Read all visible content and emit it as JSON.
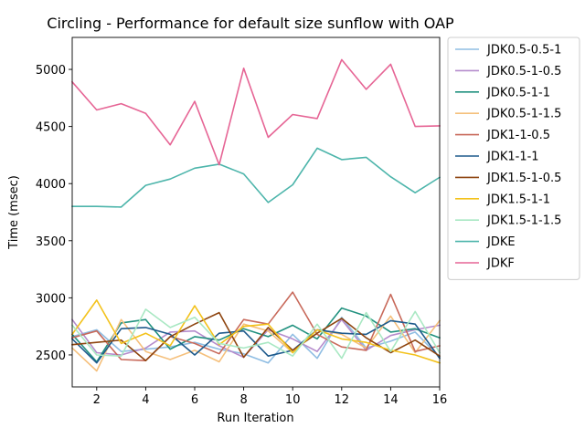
{
  "chart_data": {
    "type": "line",
    "title": "Circling - Performance for default size sunflow with OAP",
    "xlabel": "Run Iteration",
    "ylabel": "Time (msec)",
    "xlim": [
      1,
      16
    ],
    "ylim": [
      2220,
      5280
    ],
    "xticks": [
      2,
      4,
      6,
      8,
      10,
      12,
      14,
      16
    ],
    "yticks": [
      2500,
      3000,
      3500,
      4000,
      4500,
      5000
    ],
    "grid": false,
    "legend_position": "outside-right",
    "x": [
      1,
      2,
      3,
      4,
      5,
      6,
      7,
      8,
      9,
      10,
      11,
      12,
      13,
      14,
      15,
      16
    ],
    "series": [
      {
        "name": "JDK0.5-0.5-1",
        "color": "#8fbde3",
        "values": [
          2660,
          2720,
          2530,
          2550,
          2570,
          2610,
          2550,
          2510,
          2430,
          2680,
          2470,
          2830,
          2560,
          2620,
          2700,
          2480
        ]
      },
      {
        "name": "JDK0.5-1-0.5",
        "color": "#b58ccc",
        "values": [
          2810,
          2520,
          2500,
          2560,
          2700,
          2710,
          2580,
          2480,
          2720,
          2640,
          2530,
          2810,
          2540,
          2670,
          2720,
          2760
        ]
      },
      {
        "name": "JDK0.5-1-1",
        "color": "#21917f",
        "values": [
          2680,
          2440,
          2780,
          2810,
          2550,
          2660,
          2630,
          2730,
          2660,
          2760,
          2640,
          2910,
          2840,
          2700,
          2730,
          2650
        ]
      },
      {
        "name": "JDK0.5-1-1.5",
        "color": "#f5c07c",
        "values": [
          2560,
          2360,
          2810,
          2530,
          2460,
          2540,
          2440,
          2770,
          2710,
          2520,
          2720,
          2680,
          2560,
          2840,
          2520,
          2800
        ]
      },
      {
        "name": "JDK1-1-0.5",
        "color": "#c8695a",
        "values": [
          2650,
          2710,
          2460,
          2450,
          2660,
          2600,
          2510,
          2810,
          2770,
          3050,
          2680,
          2570,
          2540,
          3030,
          2530,
          2580
        ]
      },
      {
        "name": "JDK1-1-1",
        "color": "#1e5a8c",
        "values": [
          2640,
          2430,
          2730,
          2740,
          2680,
          2500,
          2690,
          2710,
          2490,
          2540,
          2720,
          2690,
          2680,
          2800,
          2770,
          2470
        ]
      },
      {
        "name": "JDK1.5-1-0.5",
        "color": "#8e4510",
        "values": [
          2590,
          2610,
          2630,
          2450,
          2660,
          2770,
          2870,
          2480,
          2740,
          2540,
          2690,
          2820,
          2650,
          2520,
          2630,
          2490
        ]
      },
      {
        "name": "JDK1.5-1-1",
        "color": "#f3c21c",
        "values": [
          2680,
          2980,
          2600,
          2690,
          2580,
          2930,
          2590,
          2750,
          2770,
          2520,
          2720,
          2640,
          2610,
          2540,
          2500,
          2430
        ]
      },
      {
        "name": "JDK1.5-1-1.5",
        "color": "#a9e8c3",
        "values": [
          2760,
          2500,
          2490,
          2900,
          2740,
          2830,
          2600,
          2560,
          2610,
          2490,
          2770,
          2470,
          2870,
          2530,
          2880,
          2520
        ]
      },
      {
        "name": "JDKE",
        "color": "#4db5ab",
        "values": [
          3800,
          3800,
          3795,
          3985,
          4040,
          4135,
          4170,
          4085,
          3835,
          3990,
          4310,
          4210,
          4230,
          4060,
          3920,
          4055
        ]
      },
      {
        "name": "JDKF",
        "color": "#e66595",
        "values": [
          4890,
          4645,
          4700,
          4615,
          4340,
          4720,
          4165,
          5010,
          4405,
          4605,
          4570,
          5085,
          4825,
          5045,
          4500,
          4505
        ]
      }
    ]
  }
}
